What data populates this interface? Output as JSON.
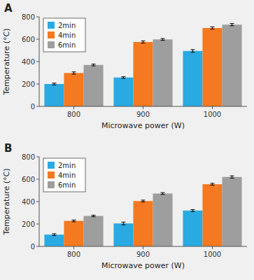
{
  "chart_data": [
    {
      "type": "bar",
      "title": "A",
      "categories": [
        "800",
        "900",
        "1000"
      ],
      "series": [
        {
          "name": "2min",
          "color": "#29aae2",
          "values": [
            200,
            258,
            495
          ],
          "errors": [
            8,
            7,
            12
          ]
        },
        {
          "name": "4min",
          "color": "#f47920",
          "values": [
            298,
            575,
            700
          ],
          "errors": [
            10,
            10,
            10
          ]
        },
        {
          "name": "6min",
          "color": "#9e9e9e",
          "values": [
            370,
            598,
            730
          ],
          "errors": [
            8,
            8,
            10
          ]
        }
      ],
      "xlabel": "Microwave power (W)",
      "ylabel": "Temperature (°C)",
      "ylim": [
        0,
        800
      ],
      "yticks": [
        0,
        200,
        400,
        600,
        800
      ],
      "legend": "upper left"
    },
    {
      "type": "bar",
      "title": "B",
      "categories": [
        "800",
        "900",
        "1000"
      ],
      "series": [
        {
          "name": "2min",
          "color": "#29aae2",
          "values": [
            105,
            205,
            320
          ],
          "errors": [
            8,
            12,
            8
          ]
        },
        {
          "name": "4min",
          "color": "#f47920",
          "values": [
            228,
            405,
            555
          ],
          "errors": [
            8,
            8,
            8
          ]
        },
        {
          "name": "6min",
          "color": "#9e9e9e",
          "values": [
            272,
            472,
            620
          ],
          "errors": [
            7,
            8,
            10
          ]
        }
      ],
      "xlabel": "Microwave power (W)",
      "ylabel": "Temperature (°C)",
      "ylim": [
        0,
        800
      ],
      "yticks": [
        0,
        200,
        400,
        600,
        800
      ],
      "legend": "upper left"
    }
  ]
}
